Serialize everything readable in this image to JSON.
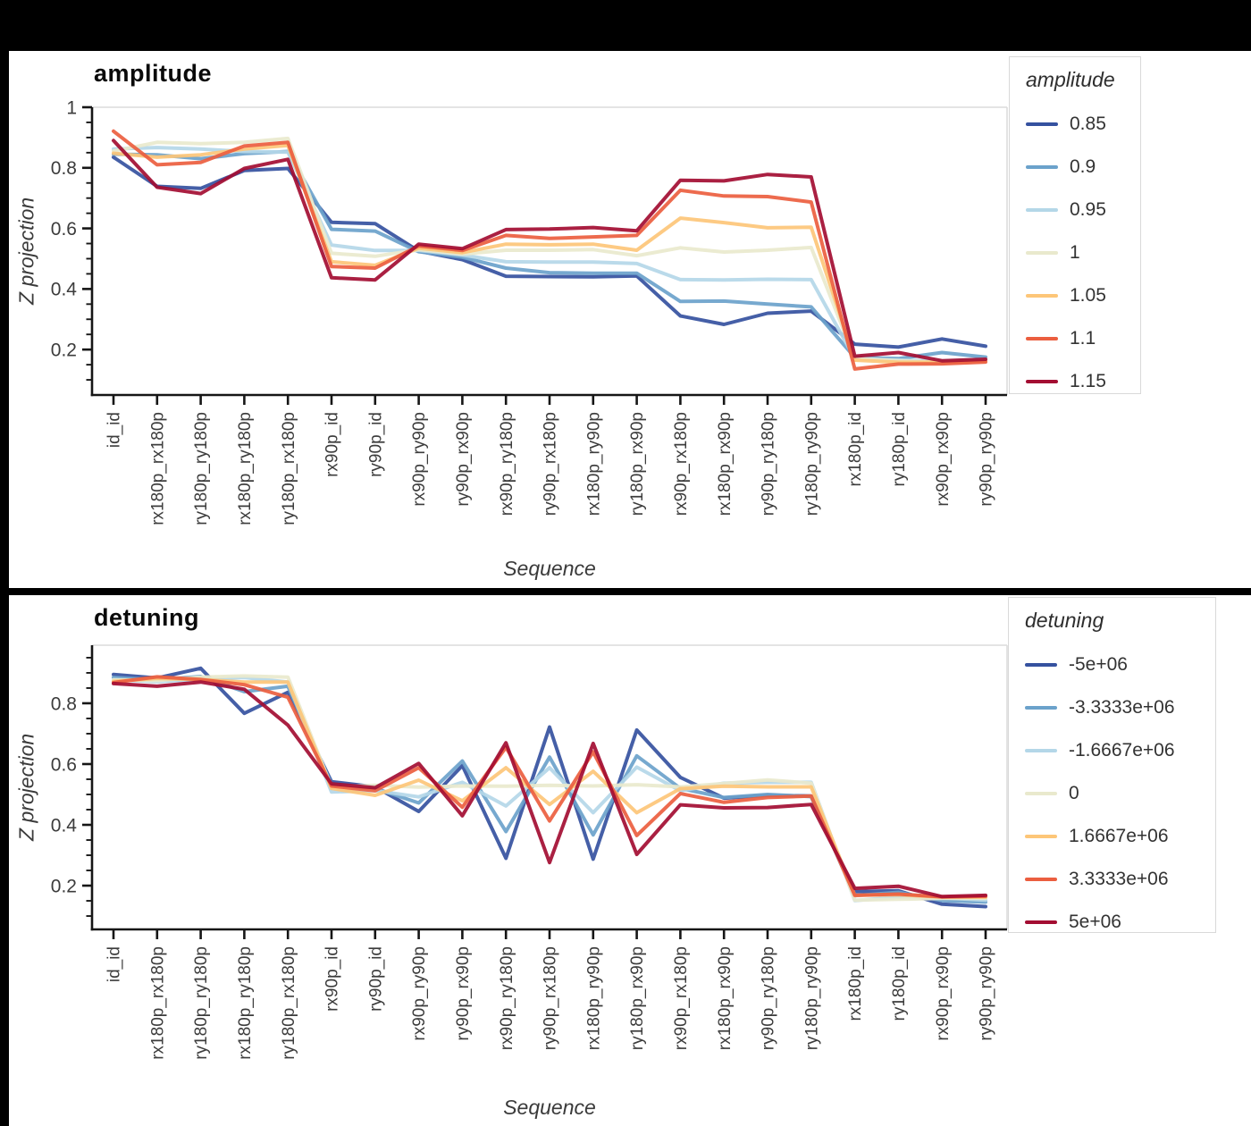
{
  "window": {
    "background": "#000000",
    "panel_background": "#ffffff"
  },
  "style": {
    "spine_color": "#161616",
    "panel_border_color": "#dcdcdc",
    "tick_label_color": "#3c3c3c",
    "series_palette": [
      "#35519f",
      "#6ba2cb",
      "#b4d7e8",
      "#e9e9cd",
      "#fdc678",
      "#eb5e3f",
      "#a30d32"
    ]
  },
  "chart_data": [
    {
      "type": "line",
      "title": "amplitude",
      "xlabel": "Sequence",
      "ylabel": "Z projection",
      "legend_title": "amplitude",
      "legend_position": "right",
      "grid": false,
      "ylim": [
        0.05,
        1.0
      ],
      "yticks": [
        0.2,
        0.4,
        0.6,
        0.8,
        1
      ],
      "categories": [
        "id_id",
        "rx180p_rx180p",
        "ry180p_ry180p",
        "rx180p_ry180p",
        "ry180p_rx180p",
        "rx90p_id",
        "ry90p_id",
        "rx90p_ry90p",
        "ry90p_rx90p",
        "rx90p_ry180p",
        "ry90p_rx180p",
        "rx180p_ry90p",
        "ry180p_rx90p",
        "rx90p_rx180p",
        "rx180p_rx90p",
        "ry90p_ry180p",
        "ry180p_ry90p",
        "rx180p_id",
        "ry180p_id",
        "rx90p_rx90p",
        "ry90p_ry90p"
      ],
      "series": [
        {
          "name": "0.85",
          "color": "#35519f",
          "values": [
            0.835,
            0.739,
            0.732,
            0.791,
            0.798,
            0.62,
            0.616,
            0.525,
            0.497,
            0.442,
            0.441,
            0.44,
            0.443,
            0.311,
            0.283,
            0.32,
            0.327,
            0.218,
            0.208,
            0.235,
            0.211
          ]
        },
        {
          "name": "0.9",
          "color": "#6ba2cb",
          "values": [
            0.845,
            0.843,
            0.83,
            0.847,
            0.854,
            0.597,
            0.591,
            0.523,
            0.505,
            0.469,
            0.454,
            0.452,
            0.452,
            0.359,
            0.36,
            0.35,
            0.341,
            0.174,
            0.17,
            0.19,
            0.175
          ]
        },
        {
          "name": "0.95",
          "color": "#b4d7e8",
          "values": [
            0.862,
            0.867,
            0.862,
            0.854,
            0.852,
            0.545,
            0.527,
            0.527,
            0.512,
            0.49,
            0.489,
            0.489,
            0.484,
            0.431,
            0.43,
            0.432,
            0.431,
            0.17,
            0.165,
            0.162,
            0.168
          ]
        },
        {
          "name": "1",
          "color": "#e9e9cd",
          "values": [
            0.855,
            0.884,
            0.88,
            0.884,
            0.897,
            0.518,
            0.508,
            0.53,
            0.515,
            0.528,
            0.528,
            0.53,
            0.51,
            0.536,
            0.522,
            0.528,
            0.537,
            0.17,
            0.163,
            0.158,
            0.164
          ]
        },
        {
          "name": "1.05",
          "color": "#fdc678",
          "values": [
            0.848,
            0.835,
            0.843,
            0.862,
            0.874,
            0.49,
            0.478,
            0.535,
            0.52,
            0.548,
            0.546,
            0.548,
            0.528,
            0.634,
            0.619,
            0.602,
            0.604,
            0.165,
            0.158,
            0.158,
            0.162
          ]
        },
        {
          "name": "1.1",
          "color": "#eb5e3f",
          "values": [
            0.921,
            0.81,
            0.818,
            0.872,
            0.884,
            0.474,
            0.469,
            0.542,
            0.527,
            0.577,
            0.567,
            0.572,
            0.577,
            0.726,
            0.707,
            0.705,
            0.687,
            0.136,
            0.152,
            0.153,
            0.159
          ]
        },
        {
          "name": "1.15",
          "color": "#a30d32",
          "values": [
            0.89,
            0.736,
            0.715,
            0.798,
            0.828,
            0.437,
            0.43,
            0.548,
            0.533,
            0.596,
            0.598,
            0.603,
            0.592,
            0.759,
            0.757,
            0.778,
            0.77,
            0.178,
            0.19,
            0.163,
            0.168
          ]
        }
      ]
    },
    {
      "type": "line",
      "title": "detuning",
      "xlabel": "Sequence",
      "ylabel": "Z projection",
      "legend_title": "detuning",
      "legend_position": "right",
      "grid": false,
      "ylim": [
        0.056,
        0.991
      ],
      "yticks": [
        0.2,
        0.4,
        0.6,
        0.8
      ],
      "categories": [
        "id_id",
        "rx180p_rx180p",
        "ry180p_ry180p",
        "rx180p_ry180p",
        "ry180p_rx180p",
        "rx90p_id",
        "ry90p_id",
        "rx90p_ry90p",
        "ry90p_rx90p",
        "rx90p_ry180p",
        "ry90p_rx180p",
        "rx180p_ry90p",
        "ry180p_rx90p",
        "rx90p_rx180p",
        "rx180p_rx90p",
        "ry90p_ry180p",
        "ry180p_ry90p",
        "rx180p_id",
        "ry180p_id",
        "rx90p_rx90p",
        "ry90p_ry90p"
      ],
      "series": [
        {
          "name": "-5e+06",
          "color": "#35519f",
          "values": [
            0.895,
            0.883,
            0.915,
            0.767,
            0.836,
            0.542,
            0.525,
            0.444,
            0.595,
            0.29,
            0.722,
            0.287,
            0.712,
            0.556,
            0.488,
            0.497,
            0.495,
            0.18,
            0.183,
            0.139,
            0.131
          ]
        },
        {
          "name": "-3.3333e+06",
          "color": "#6ba2cb",
          "values": [
            0.885,
            0.877,
            0.888,
            0.838,
            0.856,
            0.533,
            0.52,
            0.472,
            0.61,
            0.378,
            0.623,
            0.367,
            0.627,
            0.52,
            0.49,
            0.5,
            0.493,
            0.167,
            0.178,
            0.151,
            0.146
          ]
        },
        {
          "name": "-1.6667e+06",
          "color": "#b4d7e8",
          "values": [
            0.877,
            0.871,
            0.879,
            0.885,
            0.87,
            0.508,
            0.513,
            0.492,
            0.54,
            0.462,
            0.588,
            0.44,
            0.59,
            0.512,
            0.537,
            0.54,
            0.54,
            0.151,
            0.162,
            0.16,
            0.152
          ]
        },
        {
          "name": "0",
          "color": "#e9e9cd",
          "values": [
            0.877,
            0.875,
            0.886,
            0.89,
            0.886,
            0.524,
            0.53,
            0.524,
            0.528,
            0.527,
            0.53,
            0.528,
            0.532,
            0.525,
            0.536,
            0.548,
            0.537,
            0.152,
            0.155,
            0.158,
            0.158
          ]
        },
        {
          "name": "1.6667e+06",
          "color": "#fdc678",
          "values": [
            0.872,
            0.882,
            0.878,
            0.87,
            0.87,
            0.52,
            0.497,
            0.547,
            0.479,
            0.588,
            0.467,
            0.576,
            0.44,
            0.519,
            0.527,
            0.525,
            0.525,
            0.168,
            0.17,
            0.162,
            0.162
          ]
        },
        {
          "name": "3.3333e+06",
          "color": "#eb5e3f",
          "values": [
            0.868,
            0.887,
            0.878,
            0.861,
            0.82,
            0.528,
            0.512,
            0.588,
            0.458,
            0.655,
            0.413,
            0.64,
            0.365,
            0.503,
            0.474,
            0.49,
            0.495,
            0.168,
            0.172,
            0.163,
            0.165
          ]
        },
        {
          "name": "5e+06",
          "color": "#a30d32",
          "values": [
            0.865,
            0.856,
            0.87,
            0.846,
            0.728,
            0.535,
            0.522,
            0.602,
            0.43,
            0.67,
            0.276,
            0.668,
            0.303,
            0.466,
            0.456,
            0.457,
            0.467,
            0.191,
            0.198,
            0.164,
            0.168
          ]
        }
      ]
    }
  ]
}
